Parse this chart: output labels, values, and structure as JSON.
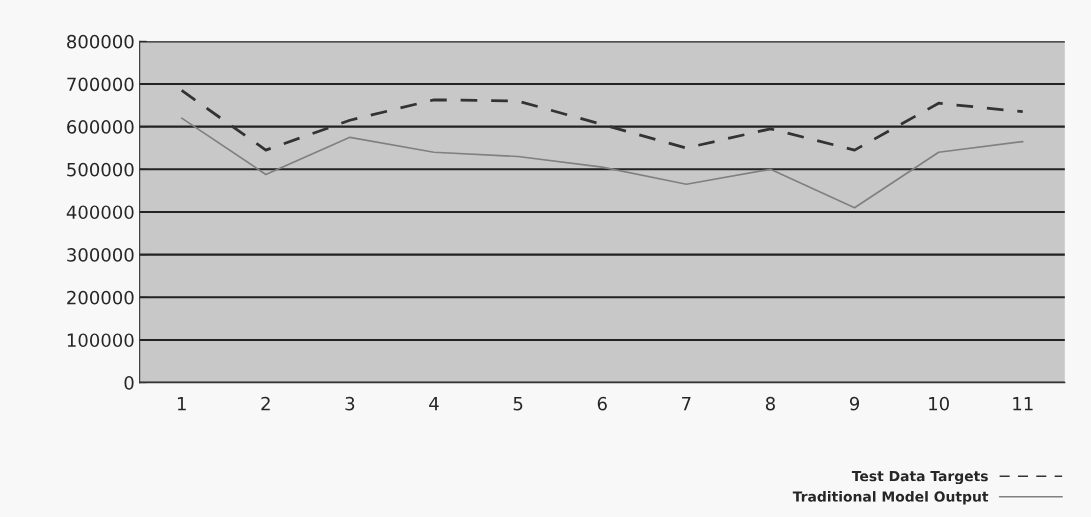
{
  "chart_data": {
    "type": "line",
    "categories": [
      "1",
      "2",
      "3",
      "4",
      "5",
      "6",
      "7",
      "8",
      "9",
      "10",
      "11"
    ],
    "series": [
      {
        "name": "Test Data Targets",
        "color": "#333333",
        "line_style": "dashed",
        "values": [
          685000,
          545000,
          615000,
          663000,
          660000,
          605000,
          550000,
          595000,
          545000,
          655000,
          635000
        ]
      },
      {
        "name": "Traditional Model Output",
        "color": "#808080",
        "line_style": "solid",
        "values": [
          620000,
          488000,
          575000,
          540000,
          530000,
          505000,
          465000,
          500000,
          410000,
          540000,
          565000
        ]
      }
    ],
    "ylim": [
      0,
      800000
    ],
    "yticks": [
      0,
      100000,
      200000,
      300000,
      400000,
      500000,
      600000,
      700000,
      800000
    ],
    "grid": "y",
    "legend": "bottom right",
    "marker": "none"
  }
}
